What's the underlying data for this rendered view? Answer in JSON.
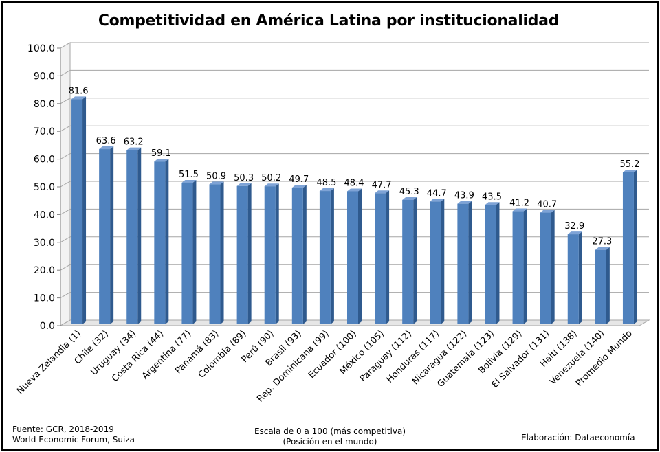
{
  "chart_data": {
    "type": "bar",
    "title": "Competitividad en América Latina por institucionalidad",
    "categories": [
      "Nueva Zelandia (1)",
      "Chile (32)",
      "Uruguay (34)",
      "Costa Rica (44)",
      "Argentina (77)",
      "Panamá (83)",
      "Colombia (89)",
      "Perú (90)",
      "Brasil (93)",
      "Rep. Dominicana (99)",
      "Ecuador (100)",
      "México (105)",
      "Paraguay (112)",
      "Honduras (117)",
      "Nicaragua (122)",
      "Guatemala (123)",
      "Bolivia (129)",
      "El Salvador (131)",
      "Haití (138)",
      "Venezuela (140)",
      "Promedio Mundo"
    ],
    "values": [
      81.6,
      63.6,
      63.2,
      59.1,
      51.5,
      50.9,
      50.3,
      50.2,
      49.7,
      48.5,
      48.4,
      47.7,
      45.3,
      44.7,
      43.9,
      43.5,
      41.2,
      40.7,
      32.9,
      27.3,
      55.2
    ],
    "value_labels": [
      "81.6",
      "63.6",
      "63.2",
      "59.1",
      "51.5",
      "50.9",
      "50.3",
      "50.2",
      "49.7",
      "48.5",
      "48.4",
      "47.7",
      "45.3",
      "44.7",
      "43.9",
      "43.5",
      "41.2",
      "40.7",
      "32.9",
      "27.3",
      "55.2"
    ],
    "y_ticks": [
      "0.0",
      "10.0",
      "20.0",
      "30.0",
      "40.0",
      "50.0",
      "60.0",
      "70.0",
      "80.0",
      "90.0",
      "100.0"
    ],
    "ylim": [
      0,
      100
    ],
    "xlabel": "",
    "ylabel": "",
    "grid": true,
    "bar_color": "#4f81bd",
    "bar_side_color": "#2f5a8e",
    "bar_top_color": "#7ea3d6"
  },
  "footer": {
    "source_line1": "Fuente:  GCR, 2018-2019",
    "source_line2": "World Economic Forum, Suiza",
    "note_line1": "Escala de 0 a 100 (más competitiva)",
    "note_line2": "(Posición en el mundo)",
    "credit": "Elaboración: Dataeconomía"
  }
}
